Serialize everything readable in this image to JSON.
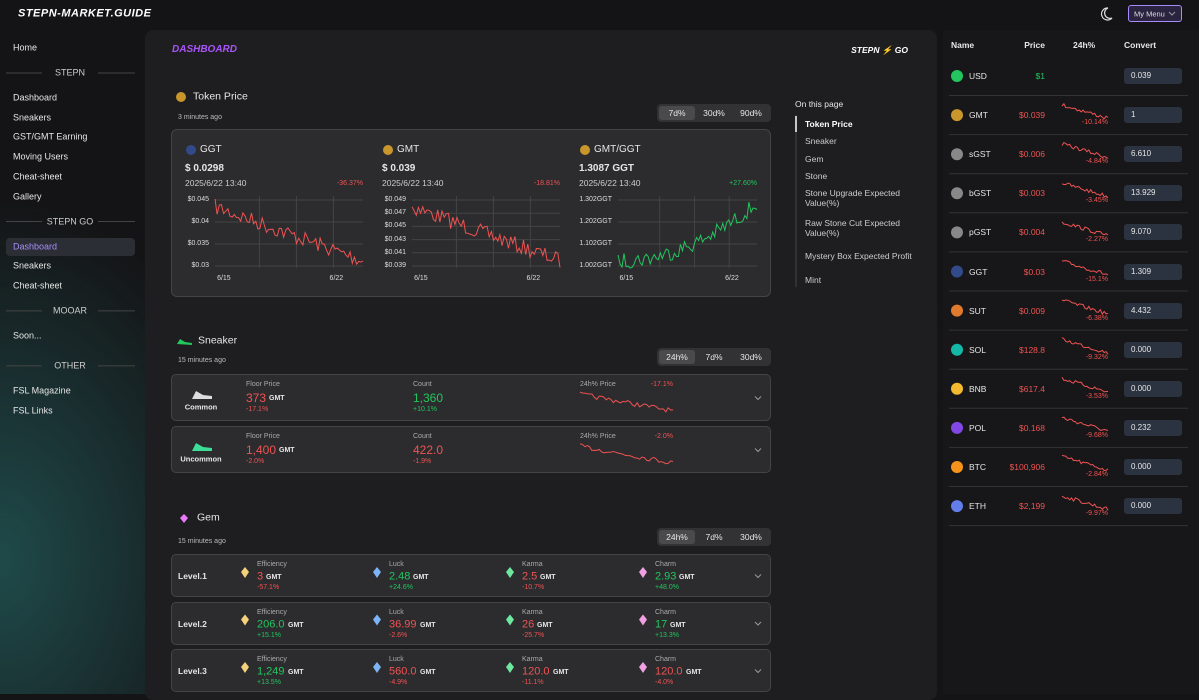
{
  "header": {
    "logo": "STEPN-MARKET.GUIDE",
    "menu": "My Menu"
  },
  "sidebar": {
    "home": "Home",
    "sections": [
      {
        "title": "STEPN",
        "links": [
          "Dashboard",
          "Sneakers",
          "GST/GMT Earning",
          "Moving Users",
          "Cheat-sheet",
          "Gallery"
        ]
      },
      {
        "title": "STEPN GO",
        "links": [
          "Dashboard",
          "Sneakers",
          "Cheat-sheet"
        ]
      },
      {
        "title": "MOOAR",
        "links": [
          "Soon..."
        ]
      },
      {
        "title": "OTHER",
        "links": [
          "FSL Magazine",
          "FSL Links"
        ]
      }
    ]
  },
  "main": {
    "title": "DASHBOARD",
    "brand": "STEPN ⚡ GO",
    "token_price": {
      "title": "Token Price",
      "updated": "3 minutes ago",
      "tabs": [
        "7d%",
        "30d%",
        "90d%"
      ],
      "cards": [
        {
          "name": "GGT",
          "price": "$ 0.0298",
          "date": "2025/6/22 13:40",
          "change": "-36.37%",
          "yticks": [
            "$0.045",
            "$0.04",
            "$0.035",
            "$0.03"
          ],
          "xticks": [
            "6/15",
            "6/22"
          ]
        },
        {
          "name": "GMT",
          "price": "$ 0.039",
          "date": "2025/6/22 13:40",
          "change": "-18.81%",
          "yticks": [
            "$0.049",
            "$0.047",
            "$0.045",
            "$0.043",
            "$0.041",
            "$0.039"
          ],
          "xticks": [
            "6/15",
            "6/22"
          ]
        },
        {
          "name": "GMT/GGT",
          "price": "1.3087 GGT",
          "date": "2025/6/22 13:40",
          "change": "+27.60%",
          "yticks": [
            "1.302GGT",
            "1.202GGT",
            "1.102GGT",
            "1.002GGT"
          ],
          "xticks": [
            "6/15",
            "6/22"
          ]
        }
      ]
    },
    "on_this_page": {
      "title": "On this page",
      "items": [
        "Token Price",
        "Sneaker",
        "Gem",
        "Stone",
        "Stone Upgrade Expected Value(%)",
        "Raw Stone Cut Expected Value(%)",
        "Mystery Box Expected Profit",
        "Mint"
      ]
    },
    "sneaker": {
      "title": "Sneaker",
      "updated": "15 minutes ago",
      "tabs": [
        "24h%",
        "7d%",
        "30d%"
      ],
      "rows": [
        {
          "rarity": "Common",
          "floor_label": "Floor Price",
          "floor": "373",
          "unit": "GMT",
          "floor_change": "-17.1%",
          "count_label": "Count",
          "count": "1,360",
          "count_change": "+10.1%",
          "price_label": "24h% Price",
          "price_change": "-17.1%"
        },
        {
          "rarity": "Uncommon",
          "floor_label": "Floor Price",
          "floor": "1,400",
          "unit": "GMT",
          "floor_change": "-2.0%",
          "count_label": "Count",
          "count": "422.0",
          "count_change": "-1.9%",
          "price_label": "24h% Price",
          "price_change": "-2.0%"
        }
      ]
    },
    "gem": {
      "title": "Gem",
      "updated": "15 minutes ago",
      "tabs": [
        "24h%",
        "7d%",
        "30d%"
      ],
      "rows": [
        {
          "level": "Level.1",
          "items": [
            {
              "label": "Efficiency",
              "value": "3",
              "unit": "GMT",
              "change": "-57.1%"
            },
            {
              "label": "Luck",
              "value": "2.48",
              "unit": "GMT",
              "change": "+24.6%"
            },
            {
              "label": "Karma",
              "value": "2.5",
              "unit": "GMT",
              "change": "-10.7%"
            },
            {
              "label": "Charm",
              "value": "2.93",
              "unit": "GMT",
              "change": "+48.0%"
            }
          ]
        },
        {
          "level": "Level.2",
          "items": [
            {
              "label": "Efficiency",
              "value": "206.0",
              "unit": "GMT",
              "change": "+15.1%"
            },
            {
              "label": "Luck",
              "value": "36.99",
              "unit": "GMT",
              "change": "-2.6%"
            },
            {
              "label": "Karma",
              "value": "26",
              "unit": "GMT",
              "change": "-25.7%"
            },
            {
              "label": "Charm",
              "value": "17",
              "unit": "GMT",
              "change": "+13.3%"
            }
          ]
        },
        {
          "level": "Level.3",
          "items": [
            {
              "label": "Efficiency",
              "value": "1,249",
              "unit": "GMT",
              "change": "+13.5%"
            },
            {
              "label": "Luck",
              "value": "560.0",
              "unit": "GMT",
              "change": "-4.9%"
            },
            {
              "label": "Karma",
              "value": "120.0",
              "unit": "GMT",
              "change": "-11.1%"
            },
            {
              "label": "Charm",
              "value": "120.0",
              "unit": "GMT",
              "change": "-4.0%"
            }
          ]
        }
      ]
    }
  },
  "prices": {
    "columns": [
      "Name",
      "Price",
      "24h%",
      "Convert"
    ],
    "rows": [
      {
        "name": "USD",
        "price": "$1",
        "convert": "0.039"
      },
      {
        "name": "GMT",
        "price": "$0.039",
        "change": "-10.14%",
        "convert": "1"
      },
      {
        "name": "sGST",
        "price": "$0.006",
        "change": "-4.84%",
        "convert": "6.610"
      },
      {
        "name": "bGST",
        "price": "$0.003",
        "change": "-3.45%",
        "convert": "13.929"
      },
      {
        "name": "pGST",
        "price": "$0.004",
        "change": "-2.27%",
        "convert": "9.070"
      },
      {
        "name": "GGT",
        "price": "$0.03",
        "change": "-15.1%",
        "convert": "1.309"
      },
      {
        "name": "SUT",
        "price": "$0.009",
        "change": "-6.38%",
        "convert": "4.432"
      },
      {
        "name": "SOL",
        "price": "$128.8",
        "change": "-9.32%",
        "convert": "0.000"
      },
      {
        "name": "BNB",
        "price": "$617.4",
        "change": "-3.53%",
        "convert": "0.000"
      },
      {
        "name": "POL",
        "price": "$0.168",
        "change": "-9.68%",
        "convert": "0.232"
      },
      {
        "name": "BTC",
        "price": "$100,906",
        "change": "-2.84%",
        "convert": "0.000"
      },
      {
        "name": "ETH",
        "price": "$2,199",
        "change": "-9.97%",
        "convert": "0.000"
      }
    ]
  }
}
